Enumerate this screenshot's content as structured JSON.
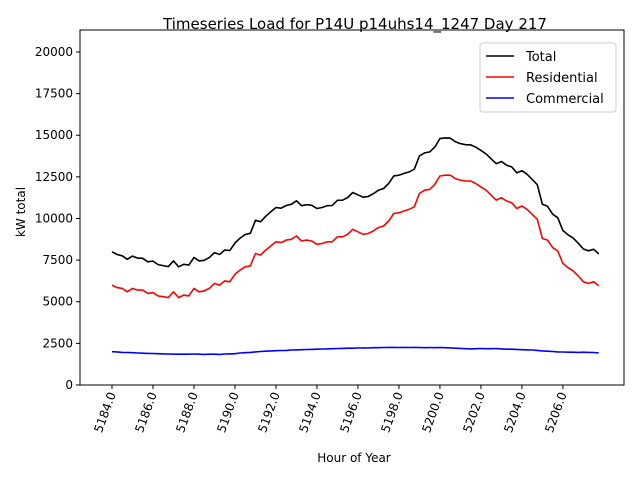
{
  "chart_data": {
    "type": "line",
    "title": "Timeseries Load for P14U p14uhs14_1247  Day 217",
    "xlabel": "Hour of Year",
    "ylabel": "kW total",
    "xlim": [
      5182.44,
      5208.98
    ],
    "ylim": [
      0,
      21320
    ],
    "x_start": 5184.0,
    "x_step": 0.25,
    "xticks": [
      5184,
      5186,
      5188,
      5190,
      5192,
      5194,
      5196,
      5198,
      5200,
      5202,
      5204,
      5206
    ],
    "xtick_labels": [
      "5184.0",
      "5186.0",
      "5188.0",
      "5190.0",
      "5192.0",
      "5194.0",
      "5196.0",
      "5198.0",
      "5200.0",
      "5202.0",
      "5204.0",
      "5206.0"
    ],
    "yticks": [
      0,
      2500,
      5000,
      7500,
      10000,
      12500,
      15000,
      17500,
      20000
    ],
    "ytick_labels": [
      "0",
      "2500",
      "5000",
      "7500",
      "10000",
      "12500",
      "15000",
      "17500",
      "20000"
    ],
    "grid": false,
    "legend_position": "top-right",
    "series": [
      {
        "name": "Total",
        "color": "#000000",
        "values": [
          8000,
          7840,
          7760,
          7550,
          7740,
          7620,
          7610,
          7400,
          7440,
          7230,
          7170,
          7110,
          7450,
          7100,
          7250,
          7200,
          7660,
          7450,
          7490,
          7650,
          7950,
          7840,
          8110,
          8070,
          8530,
          8820,
          9040,
          9110,
          9890,
          9810,
          10130,
          10400,
          10660,
          10620,
          10780,
          10850,
          11060,
          10770,
          10830,
          10790,
          10600,
          10660,
          10770,
          10780,
          11090,
          11100,
          11260,
          11560,
          11420,
          11280,
          11320,
          11490,
          11690,
          11800,
          12110,
          12560,
          12600,
          12710,
          12800,
          12960,
          13750,
          13940,
          14000,
          14290,
          14800,
          14840,
          14830,
          14610,
          14500,
          14430,
          14420,
          14280,
          14090,
          13880,
          13580,
          13290,
          13420,
          13200,
          13100,
          12740,
          12870,
          12660,
          12350,
          12030,
          10850,
          10730,
          10260,
          10040,
          9280,
          9020,
          8820,
          8510,
          8170,
          8060,
          8150,
          7870
        ]
      },
      {
        "name": "Residential",
        "color": "#ff0000",
        "values": [
          6000,
          5850,
          5800,
          5600,
          5800,
          5700,
          5700,
          5500,
          5550,
          5350,
          5300,
          5250,
          5600,
          5250,
          5400,
          5350,
          5800,
          5600,
          5650,
          5800,
          6100,
          6000,
          6250,
          6200,
          6650,
          6900,
          7100,
          7150,
          7900,
          7800,
          8100,
          8350,
          8600,
          8550,
          8700,
          8750,
          8950,
          8650,
          8700,
          8650,
          8450,
          8500,
          8600,
          8600,
          8900,
          8900,
          9050,
          9350,
          9200,
          9050,
          9100,
          9250,
          9450,
          9550,
          9850,
          10300,
          10350,
          10450,
          10550,
          10700,
          11500,
          11700,
          11750,
          12050,
          12550,
          12600,
          12600,
          12400,
          12300,
          12250,
          12250,
          12100,
          11900,
          11700,
          11400,
          11100,
          11250,
          11050,
          10950,
          10600,
          10750,
          10550,
          10250,
          9950,
          8800,
          8700,
          8250,
          8050,
          7300,
          7050,
          6850,
          6550,
          6200,
          6100,
          6200,
          5950
        ]
      },
      {
        "name": "Commercial",
        "color": "#0000ff",
        "values": [
          2000,
          1990,
          1960,
          1950,
          1940,
          1920,
          1910,
          1900,
          1890,
          1880,
          1870,
          1860,
          1850,
          1850,
          1850,
          1850,
          1860,
          1850,
          1840,
          1850,
          1850,
          1840,
          1860,
          1870,
          1880,
          1920,
          1940,
          1960,
          1990,
          2010,
          2030,
          2050,
          2060,
          2070,
          2080,
          2100,
          2110,
          2120,
          2130,
          2140,
          2150,
          2160,
          2170,
          2180,
          2190,
          2200,
          2210,
          2210,
          2220,
          2230,
          2220,
          2240,
          2240,
          2250,
          2260,
          2260,
          2250,
          2260,
          2250,
          2260,
          2250,
          2240,
          2250,
          2240,
          2250,
          2240,
          2230,
          2210,
          2200,
          2180,
          2170,
          2180,
          2190,
          2180,
          2180,
          2190,
          2170,
          2150,
          2150,
          2140,
          2120,
          2110,
          2100,
          2080,
          2050,
          2030,
          2010,
          1990,
          1980,
          1970,
          1970,
          1960,
          1970,
          1960,
          1950,
          1920
        ]
      }
    ]
  }
}
